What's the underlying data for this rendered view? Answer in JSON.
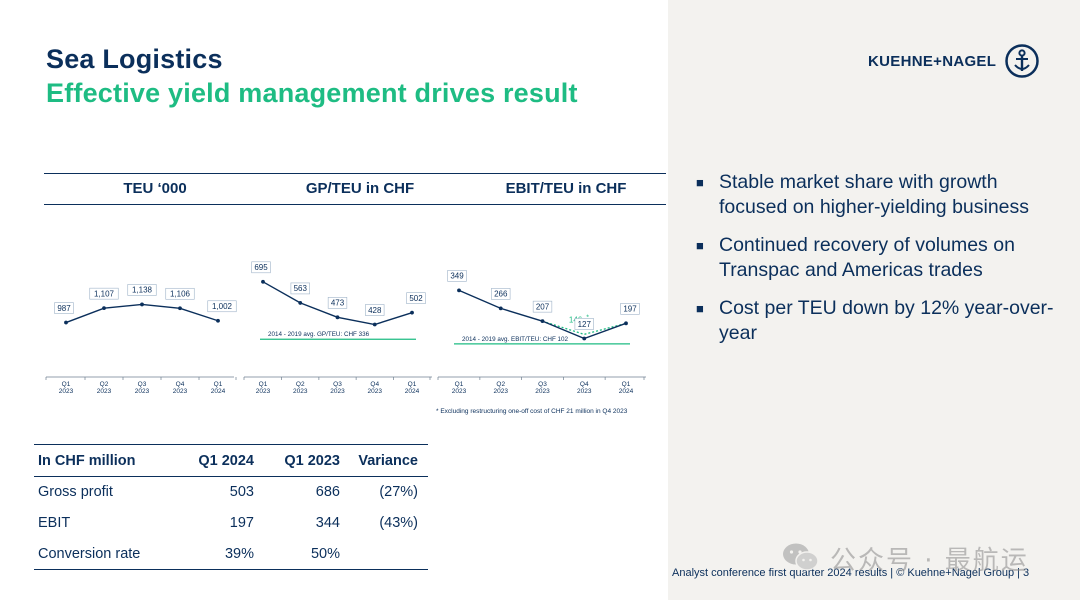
{
  "title": "Sea Logistics",
  "subtitle": "Effective yield management drives result",
  "logo": {
    "text": "KUEHNE+NAGEL"
  },
  "charts": {
    "headers": [
      "TEU ‘000",
      "GP/TEU in CHF",
      "EBIT/TEU in CHF"
    ],
    "footnote": "* Excluding restructuring one-off cost of CHF 21 million in Q4 2023"
  },
  "chart_data": [
    {
      "type": "line",
      "title": "TEU ‘000",
      "categories": [
        "Q1 2023",
        "Q2 2023",
        "Q3 2023",
        "Q4 2023",
        "Q1 2024"
      ],
      "values": [
        987,
        1107,
        1138,
        1106,
        1002
      ],
      "value_labels": [
        "987",
        "1,107",
        "1,138",
        "1,106",
        "1,002"
      ],
      "ylim": [
        800,
        1300
      ],
      "color": "#0b2f5b"
    },
    {
      "type": "line",
      "title": "GP/TEU in CHF",
      "categories": [
        "Q1 2023",
        "Q2 2023",
        "Q3 2023",
        "Q4 2023",
        "Q1 2024"
      ],
      "values": [
        695,
        563,
        473,
        428,
        502
      ],
      "value_labels": [
        "695",
        "563",
        "473",
        "428",
        "502"
      ],
      "ylim": [
        300,
        800
      ],
      "reference_line": {
        "value": 336,
        "label": "2014 - 2019 avg. GP/TEU: CHF 336",
        "color": "#1ebc83"
      },
      "color": "#0b2f5b"
    },
    {
      "type": "line",
      "title": "EBIT/TEU in CHF",
      "categories": [
        "Q1 2023",
        "Q2 2023",
        "Q3 2023",
        "Q4 2023",
        "Q1 2024"
      ],
      "values": [
        349,
        266,
        207,
        127,
        197
      ],
      "value_labels": [
        "349",
        "266",
        "207",
        "127",
        "197"
      ],
      "adjusted": {
        "category": "Q4 2023",
        "value": 146,
        "label": "146",
        "marker": "*",
        "color": "#1ebc83"
      },
      "ylim": [
        60,
        420
      ],
      "reference_line": {
        "value": 102,
        "label": "2014 - 2019 avg. EBIT/TEU: CHF 102",
        "color": "#1ebc83"
      },
      "color": "#0b2f5b"
    }
  ],
  "bullets": [
    "Stable market share with growth focused on higher-yielding business",
    "Continued recovery of volumes on Transpac and Americas trades",
    "Cost per TEU down by 12% year-over-year"
  ],
  "table": {
    "headers": [
      "In CHF million",
      "Q1 2024",
      "Q1 2023",
      "Variance"
    ],
    "rows": [
      [
        "Gross profit",
        "503",
        "686",
        "(27%)"
      ],
      [
        "EBIT",
        "197",
        "344",
        "(43%)"
      ],
      [
        "Conversion rate",
        "39%",
        "50%",
        ""
      ]
    ]
  },
  "footer": "Analyst conference first quarter 2024 results | © Kuehne+Nagel Group | 3",
  "watermark": "公众号 · 最航运"
}
